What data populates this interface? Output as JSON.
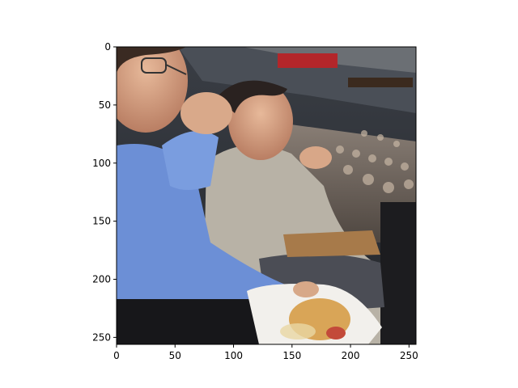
{
  "figure": {
    "background": "#ffffff",
    "image": {
      "description_colors": {
        "sweater": "#6c8fd6",
        "fleece": "#b8b2a6",
        "stadium_upper": "#2c3037",
        "crowd": "#7a6e65",
        "container": "#f2f0ec",
        "hotdog": "#d9a557"
      },
      "icon": "photo-image"
    },
    "axes": {
      "x_ticks": [
        "0",
        "50",
        "100",
        "150",
        "200",
        "250"
      ],
      "y_ticks": [
        "0",
        "50",
        "100",
        "150",
        "200",
        "250"
      ],
      "frame_color": "#000000",
      "grid": false
    }
  }
}
